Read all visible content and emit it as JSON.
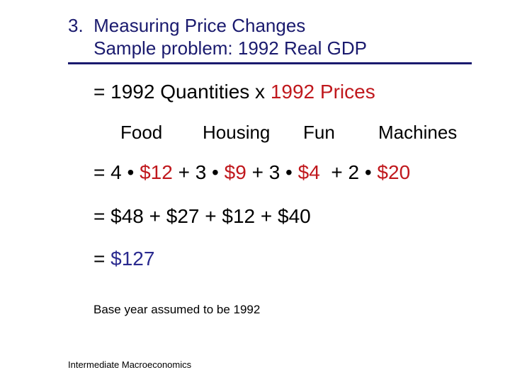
{
  "title": {
    "line1": "3.  Measuring Price Changes",
    "line2": "     Sample problem: 1992 Real GDP"
  },
  "formula": {
    "prefix": "= 1992 Quantities x ",
    "prices": "1992 Prices"
  },
  "categories": [
    "Food",
    "Housing",
    "Fun",
    "Machines"
  ],
  "expansion": {
    "p1": "= 4 • ",
    "v1": "$12",
    "p2": " + 3 • ",
    "v2": "$9",
    "p3": " + 3 • ",
    "v3": "$4",
    "p4": "  + 2 • ",
    "v4": "$20"
  },
  "sum_line": "= $48 + $27 + $12 + $40",
  "result": {
    "eq": "= ",
    "value": "$127"
  },
  "note": "Base year assumed to be 1992",
  "footer": "Intermediate Macroeconomics",
  "colors": {
    "title": "#1a1a6e",
    "price_red": "#c0181d",
    "result_blue": "#2a2a8f"
  }
}
